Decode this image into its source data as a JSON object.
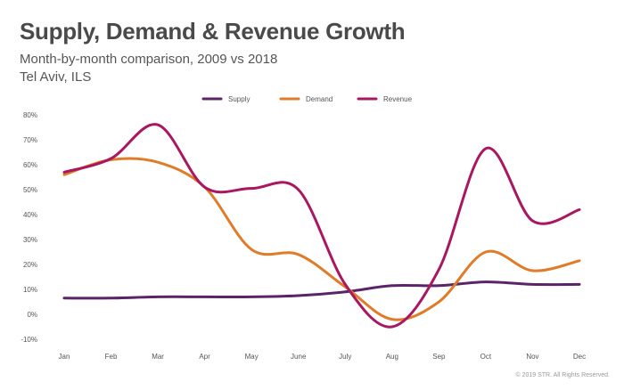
{
  "chart_data": {
    "type": "line",
    "title": "Supply, Demand & Revenue Growth",
    "subtitle": "Month-by-month comparison, 2009 vs 2018",
    "location": "Tel Aviv, ILS",
    "categories": [
      "Jan",
      "Feb",
      "Mar",
      "Apr",
      "May",
      "June",
      "July",
      "Aug",
      "Sep",
      "Oct",
      "Nov",
      "Dec"
    ],
    "yticks": [
      "80%",
      "70%",
      "60%",
      "50%",
      "40%",
      "30%",
      "20%",
      "10%",
      "0%",
      "-10%"
    ],
    "ylim": [
      -10,
      80
    ],
    "xlabel": "",
    "ylabel": "",
    "series": [
      {
        "name": "Supply",
        "color": "#5b2468",
        "values": [
          6.5,
          6.5,
          7,
          7,
          7,
          7.5,
          9,
          11.5,
          11.5,
          13,
          12,
          12
        ]
      },
      {
        "name": "Demand",
        "color": "#e07b2a",
        "values": [
          56,
          62,
          61,
          51,
          26,
          24,
          11,
          -2,
          5,
          25,
          17.5,
          21.5
        ]
      },
      {
        "name": "Revenue",
        "color": "#a8175f",
        "values": [
          57,
          62.5,
          76,
          51,
          50.5,
          50,
          12,
          -5,
          18,
          66.5,
          37.5,
          42
        ]
      }
    ],
    "legend_position": "top-center",
    "grid": false
  },
  "footer": {
    "copyright": "© 2019 STR. All Rights Reserved."
  }
}
